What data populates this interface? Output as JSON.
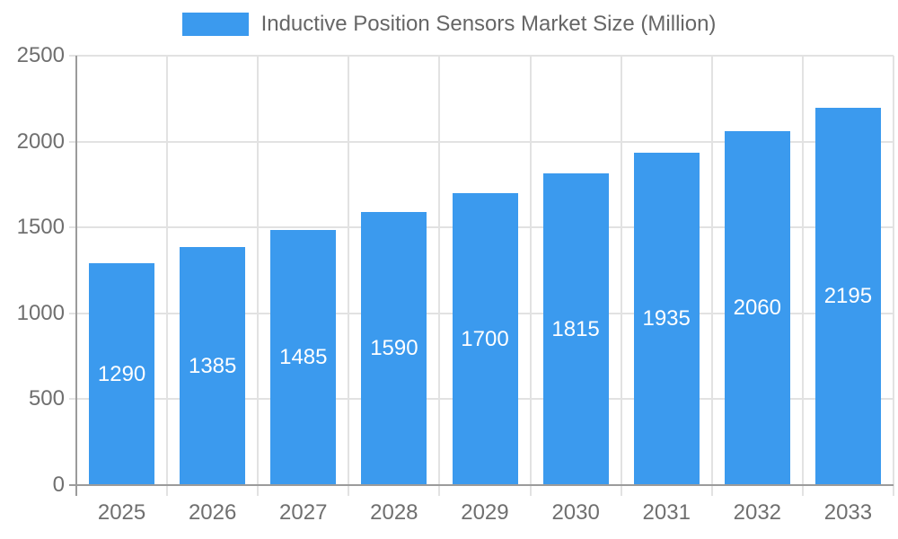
{
  "chart_data": {
    "type": "bar",
    "title": "Inductive Position Sensors Market Size (Million)",
    "categories": [
      "2025",
      "2026",
      "2027",
      "2028",
      "2029",
      "2030",
      "2031",
      "2032",
      "2033"
    ],
    "values": [
      1290,
      1385,
      1485,
      1590,
      1700,
      1815,
      1935,
      2060,
      2195
    ],
    "xlabel": "",
    "ylabel": "",
    "ylim": [
      0,
      2500
    ],
    "yticks": [
      0,
      500,
      1000,
      1500,
      2000,
      2500
    ],
    "grid": true,
    "legend_position": "top",
    "bar_labels_inside": true,
    "colors": {
      "bar": "#3B9AEE",
      "bar_label": "#FFFFFF",
      "legend_text": "#666666",
      "tick_text": "#6F6F6F",
      "gridline": "#E2E2E2",
      "axis": "#9B9B9B",
      "background": "#FFFFFF"
    }
  }
}
